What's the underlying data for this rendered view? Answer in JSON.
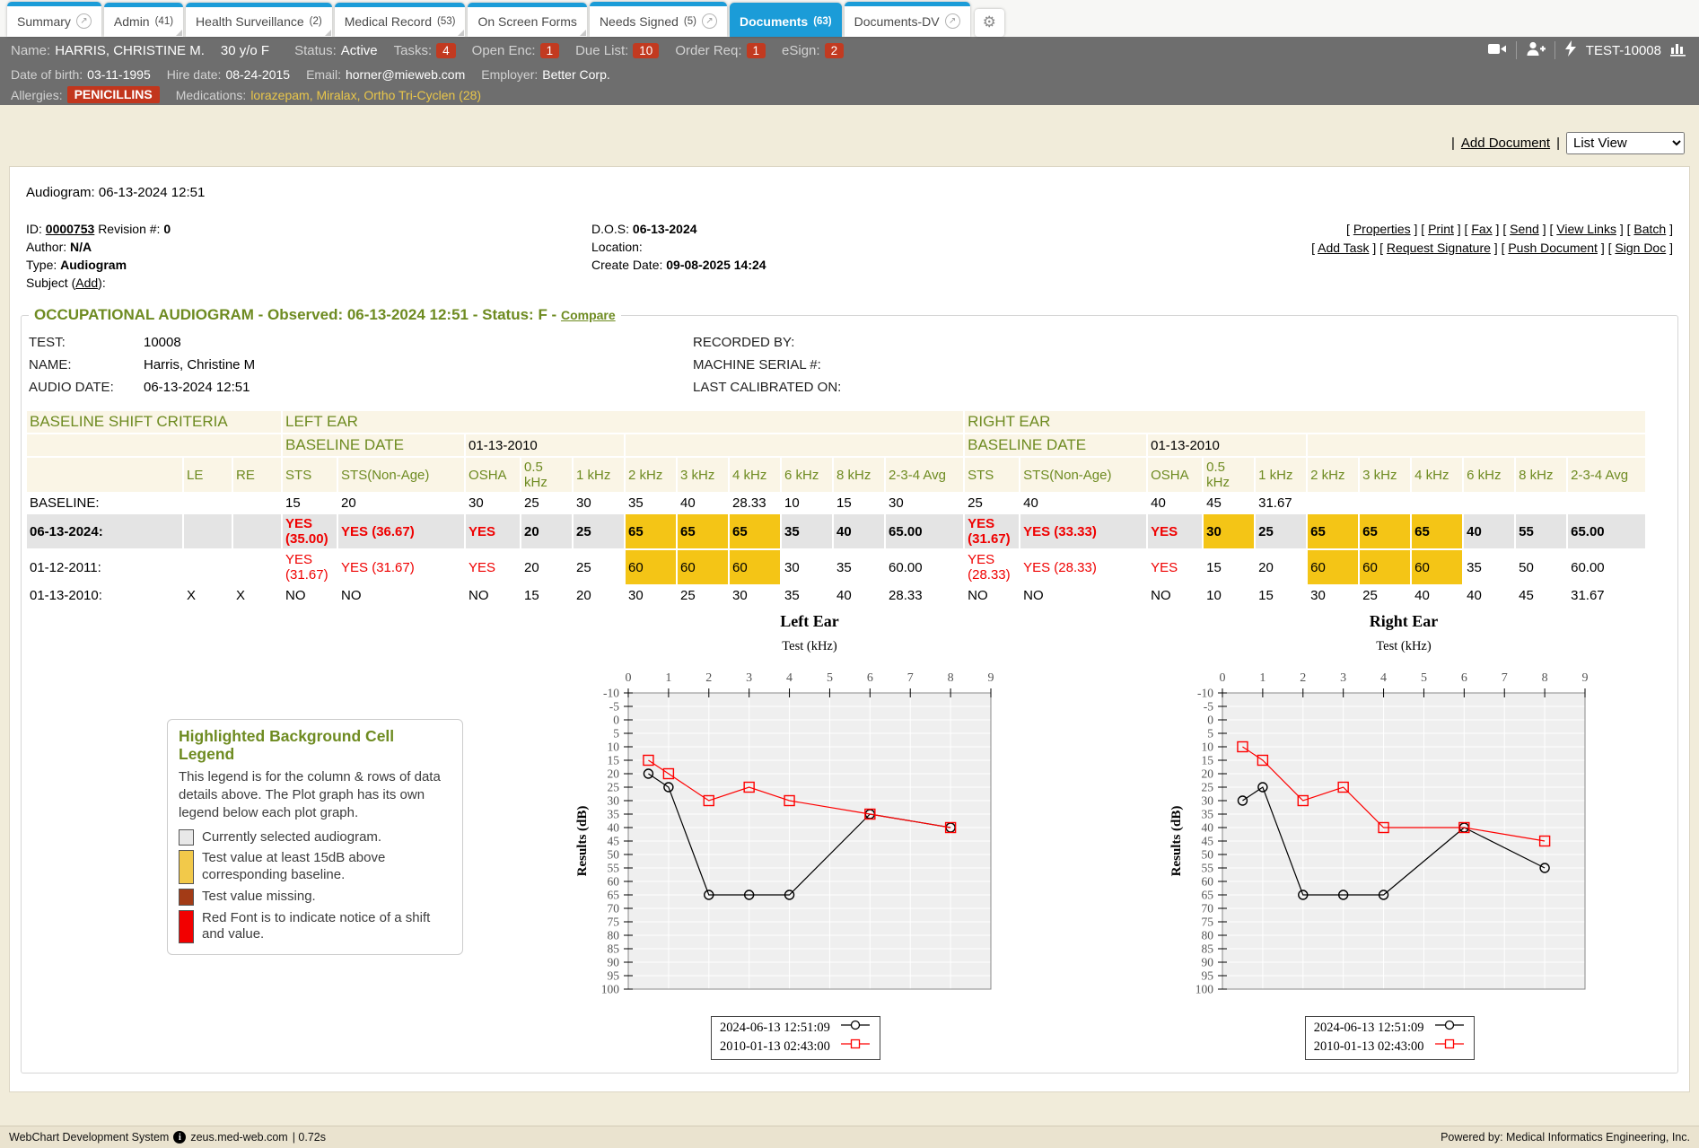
{
  "tabs": [
    {
      "label": "Summary",
      "popout": true
    },
    {
      "label": "Admin",
      "count": "(41)",
      "fold": true
    },
    {
      "label": "Health Surveillance",
      "count": "(2)",
      "fold": true
    },
    {
      "label": "Medical Record",
      "count": "(53)",
      "fold": true
    },
    {
      "label": "On Screen Forms",
      "fold": true
    },
    {
      "label": "Needs Signed",
      "count": "(5)",
      "popout": true
    },
    {
      "label": "Documents",
      "count": "(63)",
      "active": true
    },
    {
      "label": "Documents-DV",
      "popout": true
    }
  ],
  "patient": {
    "name_label": "Name:",
    "name": "HARRIS, CHRISTINE M.",
    "age_sex": "30 y/o F",
    "status_label": "Status:",
    "status": "Active",
    "tasks_label": "Tasks:",
    "tasks": "4",
    "open_enc_label": "Open Enc:",
    "open_enc": "1",
    "due_list_label": "Due List:",
    "due_list": "10",
    "order_req_label": "Order Req:",
    "order_req": "1",
    "esign_label": "eSign:",
    "esign": "2",
    "chart_id": "TEST-10008",
    "dob_label": "Date of birth:",
    "dob": "03-11-1995",
    "hire_label": "Hire date:",
    "hire": "08-24-2015",
    "email_label": "Email:",
    "email": "horner@mieweb.com",
    "employer_label": "Employer:",
    "employer": "Better Corp.",
    "allergies_label": "Allergies:",
    "allergy": "PENICILLINS",
    "medications_label": "Medications:",
    "medications": [
      "lorazepam",
      "Miralax",
      "Ortho Tri-Cyclen (28)"
    ]
  },
  "toolbar": {
    "add_document": "Add Document",
    "view_select": "List View"
  },
  "document": {
    "title": "Audiogram: 06-13-2024 12:51",
    "id_label": "ID:",
    "id": "0000753",
    "revision_label": "Revision #:",
    "revision": "0",
    "author_label": "Author:",
    "author": "N/A",
    "type_label": "Type:",
    "type": "Audiogram",
    "subject_label": "Subject (",
    "subject_add": "Add",
    "subject_close": "):",
    "dos_label": "D.O.S:",
    "dos": "06-13-2024",
    "location_label": "Location:",
    "create_label": "Create Date:",
    "create": "09-08-2025 14:24",
    "links_row1": [
      "Properties",
      "Print",
      "Fax",
      "Send",
      "View Links",
      "Batch"
    ],
    "links_row2": [
      "Add Task",
      "Request Signature",
      "Push Document",
      "Sign Doc"
    ]
  },
  "audiogram": {
    "header": "OCCUPATIONAL AUDIOGRAM - Observed: 06-13-2024 12:51 - Status: F -",
    "compare_label": "Compare",
    "test_label": "TEST:",
    "test": "10008",
    "name_label": "NAME:",
    "name": "Harris, Christine M",
    "audio_date_label": "AUDIO DATE:",
    "audio_date": "06-13-2024 12:51",
    "recorded_label": "RECORDED BY:",
    "recorded": "",
    "machine_label": "MACHINE SERIAL #:",
    "machine": "",
    "calibrated_label": "LAST CALIBRATED ON:",
    "calibrated": ""
  },
  "shift_table": {
    "section_title": "BASELINE SHIFT CRITERIA",
    "left_title": "LEFT EAR",
    "right_title": "RIGHT EAR",
    "baseline_date_label": "BASELINE DATE",
    "baseline_date": "01-13-2010",
    "le_header": "LE",
    "re_header": "RE",
    "col_headers": [
      "STS",
      "STS(Non-Age)",
      "OSHA",
      "0.5 kHz",
      "1 kHz",
      "2 kHz",
      "3 kHz",
      "4 kHz",
      "6 kHz",
      "8 kHz",
      "2-3-4 Avg"
    ],
    "rows": [
      {
        "label": "BASELINE:",
        "le": "",
        "re": "",
        "left": [
          "15",
          "20",
          "30",
          "25",
          "30",
          "35",
          "40",
          "28.33",
          "10",
          "15",
          "30"
        ],
        "right": [
          "25",
          "40",
          "40",
          "45",
          "31.67",
          "",
          "",
          "",
          "",
          "",
          ""
        ]
      },
      {
        "label": "06-13-2024:",
        "selected": true,
        "le": "",
        "re": "",
        "left": [
          {
            "t": "YES (35.00)",
            "red": true
          },
          {
            "t": "YES (36.67)",
            "red": true
          },
          {
            "t": "YES",
            "red": true
          },
          "20",
          "25",
          {
            "t": "65",
            "hl": true
          },
          {
            "t": "65",
            "hl": true
          },
          {
            "t": "65",
            "hl": true
          },
          "35",
          "40",
          "65.00"
        ],
        "right": [
          {
            "t": "YES (31.67)",
            "red": true
          },
          {
            "t": "YES (33.33)",
            "red": true
          },
          {
            "t": "YES",
            "red": true
          },
          {
            "t": "30",
            "hl": true
          },
          "25",
          {
            "t": "65",
            "hl": true
          },
          {
            "t": "65",
            "hl": true
          },
          {
            "t": "65",
            "hl": true
          },
          "40",
          "55",
          "65.00"
        ]
      },
      {
        "label": "01-12-2011:",
        "le": "",
        "re": "",
        "left": [
          {
            "t": "YES (31.67)",
            "red": true
          },
          {
            "t": "YES (31.67)",
            "red": true
          },
          {
            "t": "YES",
            "red": true
          },
          "20",
          "25",
          {
            "t": "60",
            "hl": true
          },
          {
            "t": "60",
            "hl": true
          },
          {
            "t": "60",
            "hl": true
          },
          "30",
          "35",
          "60.00"
        ],
        "right": [
          {
            "t": "YES (28.33)",
            "red": true
          },
          {
            "t": "YES (28.33)",
            "red": true
          },
          {
            "t": "YES",
            "red": true
          },
          "15",
          "20",
          {
            "t": "60",
            "hl": true
          },
          {
            "t": "60",
            "hl": true
          },
          {
            "t": "60",
            "hl": true
          },
          "35",
          "50",
          "60.00"
        ]
      },
      {
        "label": "01-13-2010:",
        "le": "X",
        "re": "X",
        "left": [
          "NO",
          "NO",
          "NO",
          "15",
          "20",
          "30",
          "25",
          "30",
          "35",
          "40",
          "28.33"
        ],
        "right": [
          "NO",
          "NO",
          "NO",
          "10",
          "15",
          "30",
          "25",
          "40",
          "40",
          "45",
          "31.67"
        ]
      }
    ]
  },
  "cell_legend": {
    "title": "Highlighted Background Cell Legend",
    "desc": "This legend is for the column & rows of data details above. The Plot graph has its own legend below each plot graph.",
    "items": [
      {
        "color": "#e8e8e8",
        "text": "Currently selected audiogram."
      },
      {
        "color": "#f2c94a",
        "text": "Test value at least 15dB above corresponding baseline."
      },
      {
        "color": "#a33b16",
        "text": "Test value missing."
      },
      {
        "color": "#f20000",
        "text": "Red Font is to indicate notice of a shift and value."
      }
    ]
  },
  "chart_data": [
    {
      "type": "line",
      "title": "Left Ear",
      "xlabel": "Test (kHz)",
      "ylabel": "Results (dB)",
      "xlim": [
        0,
        9
      ],
      "ylim": [
        -10,
        100
      ],
      "y_inverted": true,
      "x_tick_step": 1,
      "y_tick_step": 5,
      "grid": true,
      "legend_position": "bottom",
      "x": [
        0.5,
        1,
        2,
        3,
        4,
        6,
        8
      ],
      "series": [
        {
          "name": "2024-06-13 12:51:09",
          "color": "#000000",
          "marker": "circle",
          "values": [
            20,
            25,
            65,
            65,
            65,
            35,
            40
          ]
        },
        {
          "name": "2010-01-13 02:43:00",
          "color": "#fe0000",
          "marker": "square",
          "values": [
            15,
            20,
            30,
            25,
            30,
            35,
            40
          ]
        }
      ]
    },
    {
      "type": "line",
      "title": "Right Ear",
      "xlabel": "Test (kHz)",
      "ylabel": "Results (dB)",
      "xlim": [
        0,
        9
      ],
      "ylim": [
        -10,
        100
      ],
      "y_inverted": true,
      "x_tick_step": 1,
      "y_tick_step": 5,
      "grid": true,
      "legend_position": "bottom",
      "x": [
        0.5,
        1,
        2,
        3,
        4,
        6,
        8
      ],
      "series": [
        {
          "name": "2024-06-13 12:51:09",
          "color": "#000000",
          "marker": "circle",
          "values": [
            30,
            25,
            65,
            65,
            65,
            40,
            55
          ]
        },
        {
          "name": "2010-01-13 02:43:00",
          "color": "#fe0000",
          "marker": "square",
          "values": [
            10,
            15,
            30,
            25,
            40,
            40,
            45
          ]
        }
      ]
    }
  ],
  "footer": {
    "app": "WebChart Development System",
    "server": "zeus.med-web.com",
    "time": "| 0.72s",
    "powered": "Powered by: Medical Informatics Engineering, Inc."
  }
}
